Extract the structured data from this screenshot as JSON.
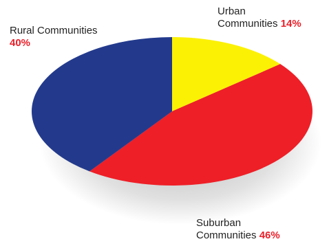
{
  "chart_data": {
    "type": "pie",
    "title": "",
    "slices": [
      {
        "label_line1": "Urban",
        "label_line2": "Communities",
        "value": 14,
        "display": "14%",
        "color": "#fbf104"
      },
      {
        "label_line1": "Suburban",
        "label_line2": "Communities",
        "value": 46,
        "display": "46%",
        "color": "#ee1f27"
      },
      {
        "label_line1": "Rural Communities",
        "label_line2": "",
        "value": 40,
        "display": "40%",
        "color": "#233a8c"
      }
    ]
  }
}
